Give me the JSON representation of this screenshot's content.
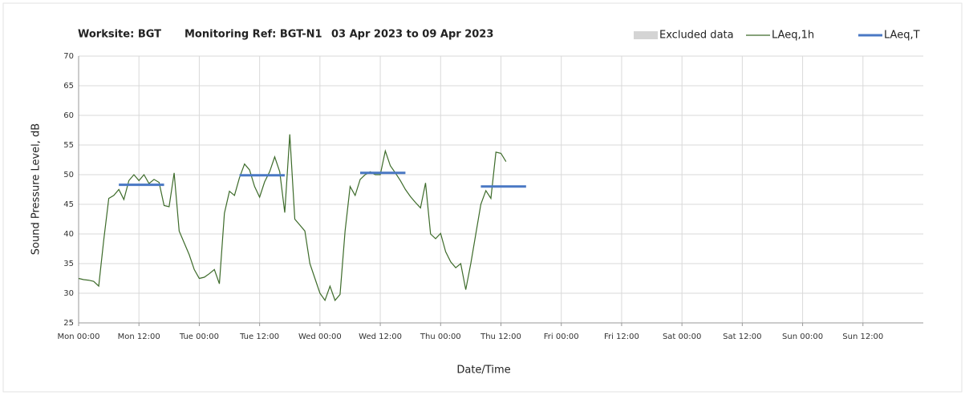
{
  "chart_data": {
    "type": "line",
    "title": "Worksite: BGT",
    "subtitle": "Monitoring Ref: BGT-N1",
    "date_range": "03 Apr 2023 to 09 Apr 2023",
    "xlabel": "Date/Time",
    "ylabel": "Sound Pressure Level, dB",
    "xlim": [
      0,
      168
    ],
    "xticks": [
      {
        "value": 0,
        "label": "Mon 00:00"
      },
      {
        "value": 12,
        "label": "Mon 12:00"
      },
      {
        "value": 24,
        "label": "Tue 00:00"
      },
      {
        "value": 36,
        "label": "Tue 12:00"
      },
      {
        "value": 48,
        "label": "Wed 00:00"
      },
      {
        "value": 60,
        "label": "Wed 12:00"
      },
      {
        "value": 72,
        "label": "Thu 00:00"
      },
      {
        "value": 84,
        "label": "Thu 12:00"
      },
      {
        "value": 96,
        "label": "Fri 00:00"
      },
      {
        "value": 108,
        "label": "Fri 12:00"
      },
      {
        "value": 120,
        "label": "Sat 00:00"
      },
      {
        "value": 132,
        "label": "Sat 12:00"
      },
      {
        "value": 144,
        "label": "Sun 00:00"
      },
      {
        "value": 156,
        "label": "Sun 12:00"
      }
    ],
    "ylim": [
      25,
      70
    ],
    "yticks": [
      25,
      30,
      35,
      40,
      45,
      50,
      55,
      60,
      65,
      70
    ],
    "grid": true,
    "legend": "top-right",
    "series": [
      {
        "name": "Excluded data",
        "color": "#d4d4d4",
        "x": [],
        "values": []
      },
      {
        "name": "LAeq,1h",
        "color": "#3d6b2a",
        "x": [
          0,
          1,
          2,
          3,
          4,
          5,
          6,
          7,
          8,
          9,
          10,
          11,
          12,
          13,
          14,
          15,
          16,
          17,
          18,
          19,
          20,
          21,
          22,
          23,
          24,
          25,
          26,
          27,
          28,
          29,
          30,
          31,
          32,
          33,
          34,
          35,
          36,
          37,
          38,
          39,
          40,
          41,
          42,
          43,
          44,
          45,
          46,
          47,
          48,
          49,
          50,
          51,
          52,
          53,
          54,
          55,
          56,
          57,
          58,
          59,
          60,
          61,
          62,
          63,
          64,
          65,
          66,
          67,
          68,
          69,
          70,
          71,
          72,
          73,
          74,
          75,
          76,
          77,
          78,
          79,
          80,
          81,
          82,
          83,
          84,
          85
        ],
        "values": [
          32.5,
          32.3,
          32.2,
          32.0,
          31.2,
          39,
          46,
          46.5,
          47.5,
          45.8,
          49,
          50,
          49,
          50,
          48.5,
          49.2,
          48.7,
          44.8,
          44.6,
          50.3,
          40.5,
          38.5,
          36.5,
          34,
          32.5,
          32.7,
          33.3,
          34,
          31.6,
          43.5,
          47.2,
          46.5,
          49.5,
          51.8,
          50.8,
          48,
          46.2,
          48.8,
          50.5,
          53,
          50.5,
          43.6,
          56.8,
          42.5,
          41.5,
          40.5,
          35,
          32.5,
          30,
          28.8,
          31.2,
          28.8,
          29.8,
          40.5,
          48,
          46.5,
          49.2,
          50,
          50.5,
          50,
          50,
          54,
          51.5,
          50.3,
          49,
          47.5,
          46.3,
          45.3,
          44.4,
          48.6,
          40,
          39.2,
          40.1,
          37,
          35.3,
          34.3,
          35,
          30.6,
          35,
          40,
          45,
          47.3,
          46,
          53.8,
          53.6,
          52.2
        ]
      },
      {
        "name": "LAeq,T",
        "color": "#4a78c4",
        "x_start": [
          8,
          32,
          56,
          80
        ],
        "x_end": [
          17,
          41,
          65,
          89
        ],
        "values": [
          48.3,
          49.9,
          50.3,
          48.0
        ]
      }
    ]
  }
}
